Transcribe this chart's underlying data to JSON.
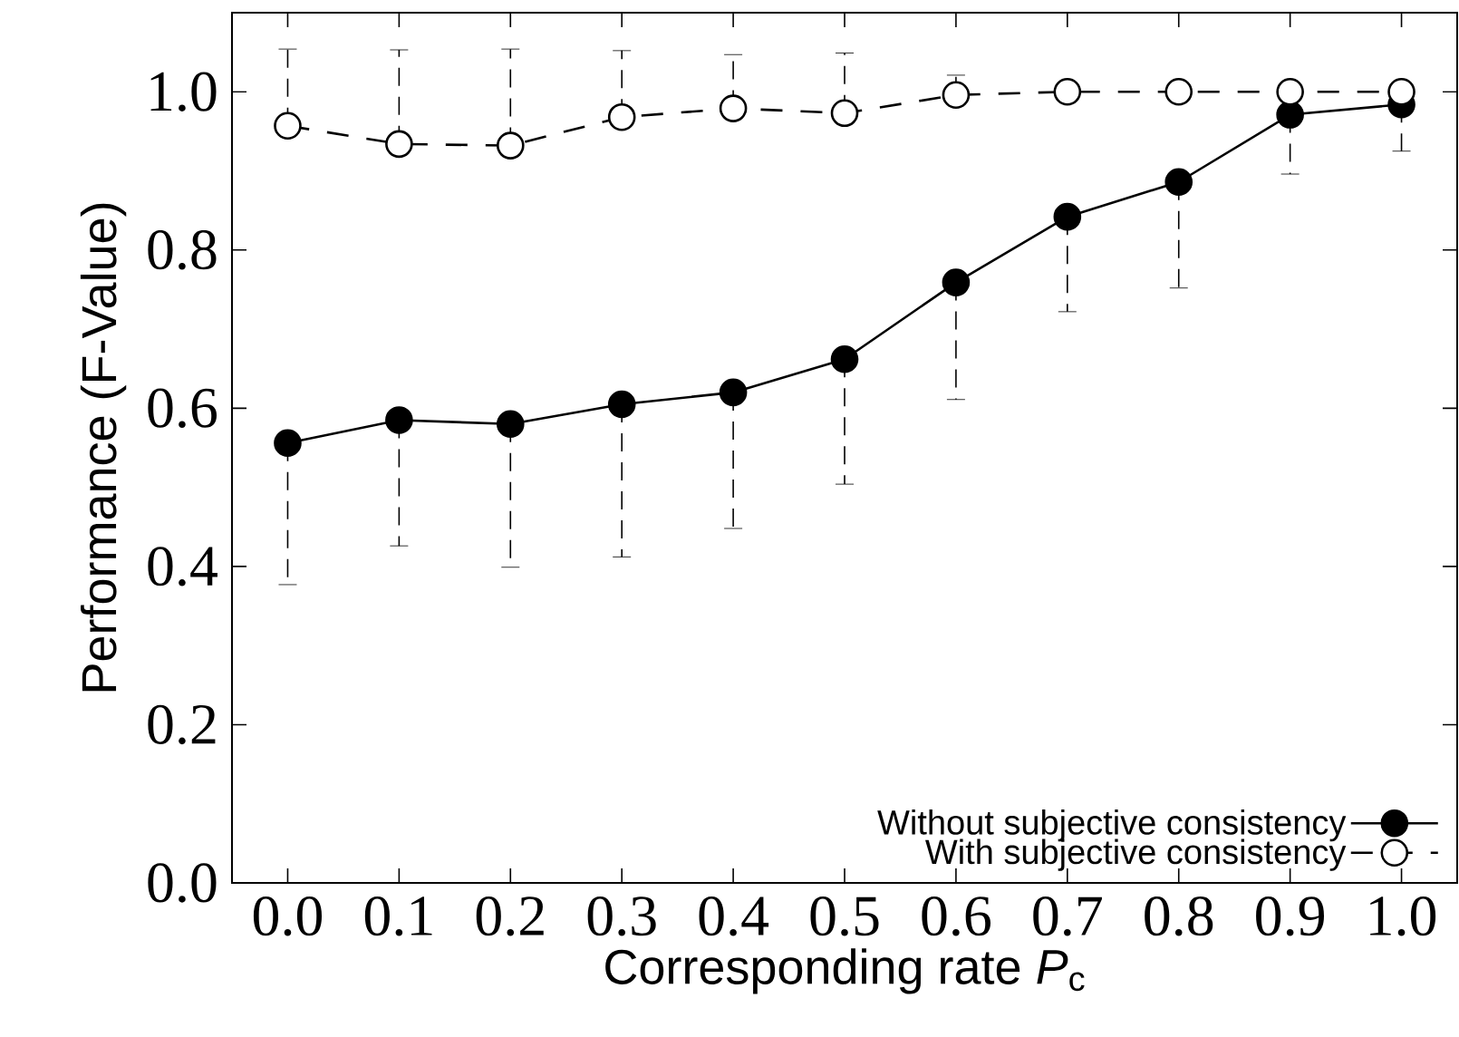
{
  "chart_data": {
    "type": "line",
    "xlabel": "Corresponding rate *P*$_{c}$",
    "ylabel": "Performance (F-Value)",
    "x": [
      0.0,
      0.1,
      0.2,
      0.3,
      0.4,
      0.5,
      0.6,
      0.7,
      0.8,
      0.9,
      1.0
    ],
    "series": [
      {
        "name": "Without subjective consistency",
        "color": "#000000",
        "line_style": "solid",
        "values": [
          0.556,
          0.585,
          0.58,
          0.605,
          0.62,
          0.662,
          0.759,
          0.842,
          0.886,
          0.971,
          0.984
        ],
        "errors": [
          [
            0.377,
            0.556
          ],
          [
            0.426,
            0.585
          ],
          [
            0.399,
            0.58
          ],
          [
            0.412,
            0.605
          ],
          [
            0.448,
            0.62
          ],
          [
            0.504,
            0.662
          ],
          [
            0.611,
            0.759
          ],
          [
            0.722,
            0.842
          ],
          [
            0.752,
            0.886
          ],
          [
            0.896,
            0.971
          ],
          [
            0.925,
            0.984
          ]
        ]
      },
      {
        "name": "With subjective consistency",
        "color": "#000000",
        "line_style": "dashed",
        "values": [
          0.957,
          0.934,
          0.932,
          0.968,
          0.979,
          0.973,
          0.996,
          1.0,
          1.0,
          1.0,
          1.0
        ],
        "errors": [
          [
            0.957,
            1.054
          ],
          [
            0.934,
            1.053
          ],
          [
            0.932,
            1.054
          ],
          [
            0.968,
            1.052
          ],
          [
            0.979,
            1.047
          ],
          [
            0.973,
            1.049
          ],
          [
            0.996,
            1.021
          ],
          null,
          null,
          null,
          null
        ]
      }
    ],
    "marker": "circle",
    "legend": "bottom right",
    "grid": false,
    "xlim": [
      -0.05,
      1.05
    ],
    "ylim": [
      0.0,
      1.1
    ],
    "xticks": [
      {
        "value": 0.0,
        "label": "0.0"
      },
      {
        "value": 0.1,
        "label": "0.1"
      },
      {
        "value": 0.2,
        "label": "0.2"
      },
      {
        "value": 0.3,
        "label": "0.3"
      },
      {
        "value": 0.4,
        "label": "0.4"
      },
      {
        "value": 0.5,
        "label": "0.5"
      },
      {
        "value": 0.6,
        "label": "0.6"
      },
      {
        "value": 0.7,
        "label": "0.7"
      },
      {
        "value": 0.8,
        "label": "0.8"
      },
      {
        "value": 0.9,
        "label": "0.9"
      },
      {
        "value": 1.0,
        "label": "1.0"
      }
    ],
    "yticks": [
      {
        "value": 0.0,
        "label": "0.0"
      },
      {
        "value": 0.2,
        "label": "0.2"
      },
      {
        "value": 0.4,
        "label": "0.4"
      },
      {
        "value": 0.6,
        "label": "0.6"
      },
      {
        "value": 0.8,
        "label": "0.8"
      },
      {
        "value": 1.0,
        "label": "1.0"
      }
    ]
  }
}
